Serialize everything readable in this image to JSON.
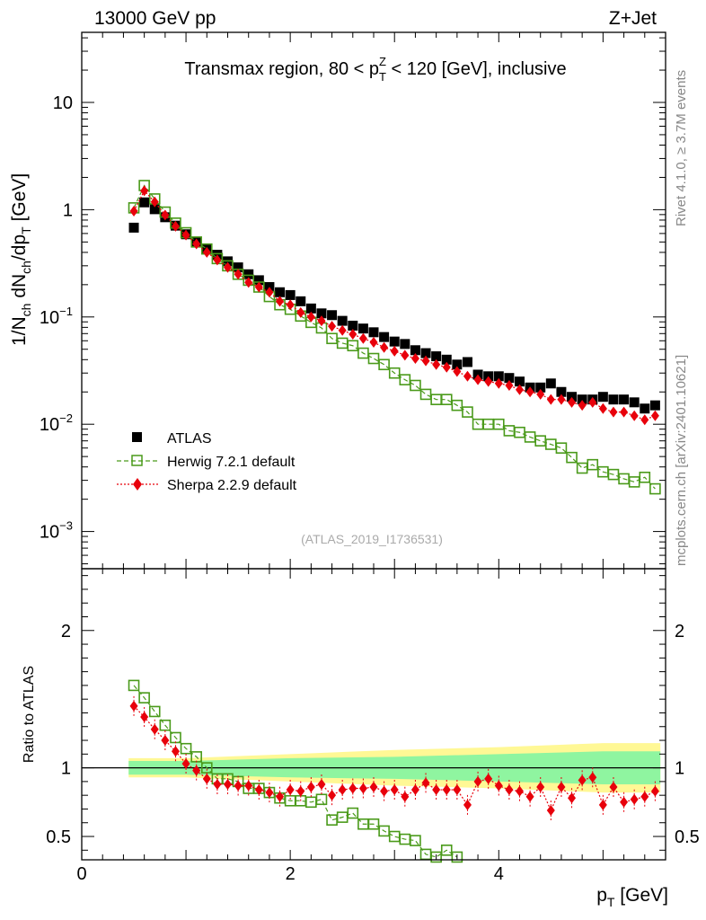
{
  "header": {
    "left": "13000 GeV pp",
    "right": "Z+Jet",
    "watermark": "(ATLAS_2019_I1736531)",
    "side_top": "Rivet 4.1.0, ≥ 3.7M events",
    "side_bottom": "mcplots.cern.ch [arXiv:2401.10621]"
  },
  "colors": {
    "atlas": "#000000",
    "herwig": "#4a9a1a",
    "sherpa": "#e8000b",
    "band_inner": "#8ff5a0",
    "band_outer": "#fff895"
  },
  "chart_data": [
    {
      "type": "scatter",
      "title_parts": [
        "Transmax region, 80 < p",
        "Z",
        "T",
        " < 120 [GeV], inclusive"
      ],
      "ylabel_parts": [
        "1/N",
        "ch",
        " dN",
        "ch",
        "/dp",
        "T",
        " [GeV]"
      ],
      "yscale": "log",
      "ylim": [
        0.00045,
        45
      ],
      "xlim": [
        0,
        5.6
      ],
      "y_ticks": [
        {
          "value": 0.001,
          "base": "10",
          "exp": "−3"
        },
        {
          "value": 0.01,
          "base": "10",
          "exp": "−2"
        },
        {
          "value": 0.1,
          "base": "10",
          "exp": "−1"
        },
        {
          "value": 1,
          "base": "1",
          "exp": ""
        },
        {
          "value": 10,
          "base": "10",
          "exp": ""
        }
      ],
      "x": [
        0.5,
        0.6,
        0.7,
        0.8,
        0.9,
        1.0,
        1.1,
        1.2,
        1.3,
        1.4,
        1.5,
        1.6,
        1.7,
        1.8,
        1.9,
        2.0,
        2.1,
        2.2,
        2.3,
        2.4,
        2.5,
        2.6,
        2.7,
        2.8,
        2.9,
        3.0,
        3.1,
        3.2,
        3.3,
        3.4,
        3.5,
        3.6,
        3.7,
        3.8,
        3.9,
        4.0,
        4.1,
        4.2,
        4.3,
        4.4,
        4.5,
        4.6,
        4.7,
        4.8,
        4.9,
        5.0,
        5.1,
        5.2,
        5.3,
        5.4,
        5.5
      ],
      "series": [
        {
          "name": "ATLAS",
          "marker": "square-filled",
          "values": [
            0.68,
            1.17,
            1.01,
            0.85,
            0.71,
            0.59,
            0.5,
            0.43,
            0.38,
            0.33,
            0.29,
            0.25,
            0.22,
            0.19,
            0.17,
            0.16,
            0.14,
            0.12,
            0.108,
            0.104,
            0.092,
            0.083,
            0.078,
            0.072,
            0.065,
            0.059,
            0.056,
            0.049,
            0.046,
            0.043,
            0.04,
            0.036,
            0.038,
            0.029,
            0.028,
            0.028,
            0.027,
            0.025,
            0.022,
            0.022,
            0.024,
            0.02,
            0.018,
            0.017,
            0.017,
            0.018,
            0.017,
            0.017,
            0.016,
            0.014,
            0.015
          ]
        },
        {
          "name": "Herwig 7.2.1 default",
          "marker": "square-open",
          "values": [
            1.04,
            1.68,
            1.26,
            0.95,
            0.75,
            0.61,
            0.5,
            0.43,
            0.35,
            0.3,
            0.25,
            0.22,
            0.19,
            0.155,
            0.13,
            0.118,
            0.102,
            0.089,
            0.079,
            0.063,
            0.057,
            0.054,
            0.046,
            0.041,
            0.036,
            0.03,
            0.026,
            0.023,
            0.019,
            0.017,
            0.017,
            0.015,
            0.013,
            0.01,
            0.01,
            0.01,
            0.0087,
            0.0084,
            0.0076,
            0.007,
            0.0065,
            0.006,
            0.0049,
            0.0039,
            0.0042,
            0.0036,
            0.0034,
            0.0031,
            0.0029,
            0.0032,
            0.0025
          ]
        },
        {
          "name": "Sherpa 2.2.9 default",
          "marker": "diamond-filled",
          "values": [
            0.97,
            1.5,
            1.18,
            0.89,
            0.7,
            0.58,
            0.48,
            0.4,
            0.34,
            0.29,
            0.25,
            0.21,
            0.19,
            0.17,
            0.14,
            0.13,
            0.11,
            0.1,
            0.092,
            0.082,
            0.075,
            0.069,
            0.063,
            0.058,
            0.052,
            0.048,
            0.044,
            0.041,
            0.039,
            0.036,
            0.034,
            0.031,
            0.028,
            0.026,
            0.025,
            0.024,
            0.023,
            0.021,
            0.02,
            0.019,
            0.017,
            0.017,
            0.016,
            0.015,
            0.016,
            0.014,
            0.013,
            0.013,
            0.012,
            0.011,
            0.012
          ]
        }
      ],
      "legend": {
        "placement": "lower-left",
        "entries": [
          "ATLAS",
          "Herwig 7.2.1 default",
          "Sherpa 2.2.9 default"
        ]
      }
    },
    {
      "type": "scatter",
      "ylabel": "Ratio to ATLAS",
      "xlabel_parts": [
        "p",
        "T",
        " [GeV]"
      ],
      "ylim": [
        0.33,
        2.45
      ],
      "xlim": [
        0,
        5.6
      ],
      "y_ticks": [
        {
          "value": 0.5,
          "label": "0.5"
        },
        {
          "value": 1,
          "label": "1"
        },
        {
          "value": 2,
          "label": "2"
        }
      ],
      "x_ticks": [
        {
          "value": 0,
          "label": "0"
        },
        {
          "value": 2,
          "label": "2"
        },
        {
          "value": 4,
          "label": "4"
        }
      ],
      "reference_line": 1,
      "band_x": [
        0.45,
        1.0,
        2.0,
        3.0,
        4.0,
        5.0,
        5.55
      ],
      "band_inner": [
        0.05,
        0.05,
        0.07,
        0.08,
        0.1,
        0.12,
        0.12
      ],
      "band_outer": [
        0.07,
        0.07,
        0.1,
        0.13,
        0.15,
        0.18,
        0.18
      ],
      "x": [
        0.5,
        0.6,
        0.7,
        0.8,
        0.9,
        1.0,
        1.1,
        1.2,
        1.3,
        1.4,
        1.5,
        1.6,
        1.7,
        1.8,
        1.9,
        2.0,
        2.1,
        2.2,
        2.3,
        2.4,
        2.5,
        2.6,
        2.7,
        2.8,
        2.9,
        3.0,
        3.1,
        3.2,
        3.3,
        3.4,
        3.5,
        3.6,
        3.7,
        3.8,
        3.9,
        4.0,
        4.1,
        4.2,
        4.3,
        4.4,
        4.5,
        4.6,
        4.7,
        4.8,
        4.9,
        5.0,
        5.1,
        5.2,
        5.3,
        5.4,
        5.5
      ],
      "series": [
        {
          "name": "Herwig 7.2.1 default",
          "values": [
            1.6,
            1.51,
            1.41,
            1.31,
            1.22,
            1.14,
            1.08,
            1.0,
            0.92,
            0.92,
            0.9,
            0.85,
            0.85,
            0.82,
            0.78,
            0.76,
            0.76,
            0.75,
            0.77,
            0.62,
            0.64,
            0.67,
            0.59,
            0.59,
            0.54,
            0.5,
            0.48,
            0.47,
            0.37,
            0.35,
            0.4,
            0.35
          ]
        },
        {
          "name": "Sherpa 2.2.9 default",
          "values": [
            1.45,
            1.37,
            1.28,
            1.2,
            1.12,
            1.03,
            0.98,
            0.92,
            0.88,
            0.88,
            0.87,
            0.87,
            0.84,
            0.82,
            0.79,
            0.84,
            0.83,
            0.86,
            0.88,
            0.8,
            0.84,
            0.85,
            0.85,
            0.86,
            0.83,
            0.84,
            0.79,
            0.84,
            0.89,
            0.84,
            0.84,
            0.84,
            0.73,
            0.9,
            0.92,
            0.87,
            0.84,
            0.83,
            0.79,
            0.86,
            0.69,
            0.86,
            0.78,
            0.91,
            0.93,
            0.73,
            0.86,
            0.75,
            0.77,
            0.79,
            0.83
          ]
        }
      ]
    }
  ]
}
